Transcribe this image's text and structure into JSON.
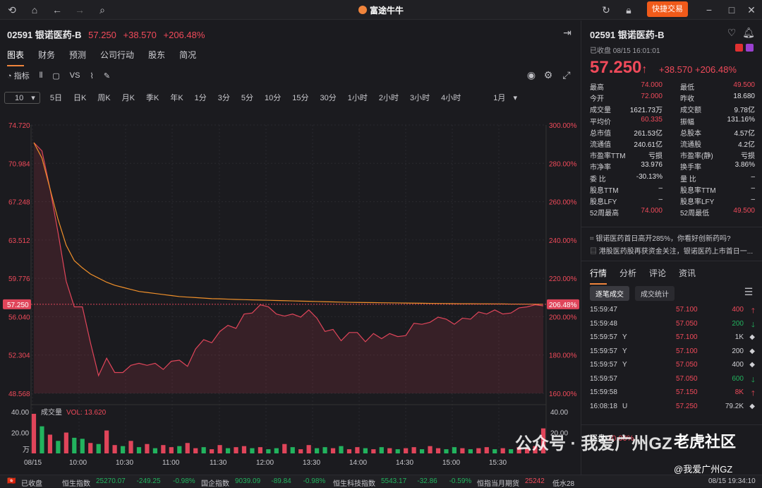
{
  "titlebar": {
    "brand": "富途牛牛",
    "quick_trade": "快捷交易"
  },
  "header": {
    "code": "02591",
    "name": "银诺医药-B",
    "price": "57.250",
    "change": "+38.570",
    "pct": "+206.48%"
  },
  "tabs": [
    "图表",
    "财务",
    "预测",
    "公司行动",
    "股东",
    "简况"
  ],
  "tools": {
    "indicator": "指标",
    "vs": "VS"
  },
  "periods": {
    "selected": "10",
    "items": [
      "5日",
      "日K",
      "周K",
      "月K",
      "季K",
      "年K",
      "1分",
      "3分",
      "5分",
      "10分",
      "15分",
      "30分",
      "1小时",
      "2小时",
      "3小时",
      "4小时",
      "1月"
    ]
  },
  "chart_data": {
    "type": "line",
    "title": "",
    "x_ticks": [
      "08/15",
      "10:00",
      "10:30",
      "11:00",
      "11:30",
      "12:00",
      "13:30",
      "14:00",
      "14:30",
      "15:00",
      "15:30"
    ],
    "y_ticks": [
      "74.720",
      "70.984",
      "67.248",
      "63.512",
      "59.776",
      "56.040",
      "52.304",
      "48.568"
    ],
    "pct_ticks": [
      "300.00%",
      "280.00%",
      "260.00%",
      "240.00%",
      "220.00%",
      "200.00%",
      "180.00%",
      "160.00%"
    ],
    "price_tag": "57.250",
    "pct_tag": "206.48%",
    "ylim": [
      48.568,
      74.72
    ],
    "series": [
      {
        "name": "",
        "color": "#e0455a",
        "values": [
          73.0,
          72.2,
          68.5,
          64.2,
          59.5,
          57.0,
          57.0,
          53.5,
          50.3,
          52.0,
          50.6,
          50.6,
          51.3,
          51.5,
          51.3,
          51.5,
          50.9,
          51.7,
          51.8,
          51.2,
          52.9,
          53.8,
          53.5,
          54.6,
          55.2,
          54.9,
          56.3,
          56.4,
          57.2,
          57.0,
          56.3,
          56.1,
          56.3,
          56.0,
          56.7,
          55.9,
          54.6,
          54.8,
          53.7,
          54.5,
          54.5,
          53.6,
          54.4,
          53.9,
          54.4,
          54.1,
          54.2,
          55.4,
          55.3,
          55.5,
          56.0,
          55.8,
          55.3,
          55.9,
          55.8,
          56.5,
          56.3,
          56.7,
          56.3,
          56.4,
          56.9,
          57.0,
          57.2,
          57.1
        ]
      },
      {
        "name": "",
        "color": "#f0902a",
        "values": [
          73.0,
          71.5,
          68.5,
          65.5,
          63.0,
          61.5,
          60.8,
          60.2,
          59.8,
          59.4,
          59.1,
          58.9,
          58.7,
          58.5,
          58.4,
          58.3,
          58.2,
          58.1,
          58.0,
          57.95,
          57.9,
          57.85,
          57.8,
          57.78,
          57.75,
          57.72,
          57.7,
          57.68,
          57.66,
          57.64,
          57.62,
          57.6,
          57.58,
          57.56,
          57.54,
          57.52,
          57.5,
          57.48,
          57.46,
          57.44,
          57.43,
          57.42,
          57.41,
          57.4,
          57.39,
          57.38,
          57.37,
          57.36,
          57.35,
          57.34,
          57.33,
          57.32,
          57.31,
          57.3,
          57.3,
          57.29,
          57.29,
          57.28,
          57.28,
          57.27,
          57.27,
          57.26,
          57.26,
          57.25
        ]
      }
    ],
    "volume": {
      "label": "成交量",
      "vol": "VOL: 13.620",
      "ticks": [
        "40.00",
        "20.00"
      ],
      "unit": "万",
      "ylim": [
        0,
        40
      ],
      "values": [
        38,
        26,
        18,
        12,
        20,
        15,
        14,
        10,
        9,
        22,
        8,
        7,
        12,
        6,
        9,
        5,
        8,
        6,
        7,
        10,
        5,
        6,
        4,
        8,
        5,
        6,
        7,
        5,
        6,
        4,
        5,
        9,
        6,
        4,
        8,
        5,
        6,
        5,
        7,
        4,
        6,
        5,
        4,
        6,
        5,
        4,
        5,
        6,
        4,
        7,
        5,
        4,
        6,
        5,
        4,
        5,
        6,
        4,
        5,
        4,
        6,
        5,
        7,
        24
      ],
      "up": [
        1,
        0,
        1,
        0,
        1,
        0,
        0,
        1,
        0,
        1,
        1,
        0,
        1,
        0,
        1,
        0,
        1,
        1,
        0,
        1,
        1,
        0,
        1,
        1,
        0,
        1,
        1,
        0,
        1,
        0,
        0,
        1,
        0,
        1,
        1,
        0,
        0,
        1,
        0,
        1,
        1,
        0,
        1,
        0,
        1,
        0,
        1,
        1,
        0,
        1,
        1,
        0,
        0,
        1,
        0,
        1,
        1,
        0,
        1,
        0,
        1,
        1,
        1,
        1
      ]
    }
  },
  "right": {
    "code": "02591",
    "name": "银诺医药-B",
    "sub": "已收盘 08/15 16:01:01",
    "price": "57.250",
    "arrow": "↑",
    "change": "+38.570",
    "pct": "+206.48%",
    "stats": [
      [
        "最高",
        "74.000",
        "最低",
        "49.500"
      ],
      [
        "今开",
        "72.000",
        "昨收",
        "18.680"
      ],
      [
        "成交量",
        "1621.73万",
        "成交额",
        "9.78亿"
      ],
      [
        "平均价",
        "60.335",
        "振幅",
        "131.16%"
      ],
      [
        "总市值",
        "261.53亿",
        "总股本",
        "4.57亿"
      ],
      [
        "流通值",
        "240.61亿",
        "流通股",
        "4.2亿"
      ],
      [
        "市盈率TTM",
        "亏损",
        "市盈率(静)",
        "亏损"
      ],
      [
        "市净率",
        "33.976",
        "换手率",
        "3.86%"
      ],
      [
        "委 比",
        "-30.13%",
        "量 比",
        "–"
      ],
      [
        "股息TTM",
        "–",
        "股息率TTM",
        "–"
      ],
      [
        "股息LFY",
        "–",
        "股息率LFY",
        "–"
      ],
      [
        "52周最高",
        "74.000",
        "52周最低",
        "49.500"
      ]
    ],
    "news": [
      "银诺医药首日高开285%，你看好创新药吗?",
      "港股医药股再获资金关注，银诺医药上市首日一..."
    ],
    "rtabs": [
      "行情",
      "分析",
      "评论",
      "资讯"
    ],
    "subtabs": [
      "逐笔成交",
      "成交统计"
    ],
    "trades": [
      [
        "15:59:47",
        "",
        "57.100",
        "400",
        "up"
      ],
      [
        "15:59:48",
        "",
        "57.050",
        "200",
        "down"
      ],
      [
        "15:59:57",
        "Y",
        "57.100",
        "1K",
        "flat"
      ],
      [
        "15:59:57",
        "Y",
        "57.100",
        "200",
        "flat"
      ],
      [
        "15:59:57",
        "Y",
        "57.050",
        "400",
        "flat"
      ],
      [
        "15:59:57",
        "",
        "57.050",
        "600",
        "down"
      ],
      [
        "15:59:58",
        "",
        "57.150",
        "8K",
        "up"
      ],
      [
        "16:08:18",
        "U",
        "57.250",
        "79.2K",
        "flat"
      ]
    ],
    "buy_label": "买盘",
    "buy_pct": "10.00%"
  },
  "status": {
    "closed": "已收盘",
    "items": [
      [
        "恒生指数",
        "25270.07",
        "-249.25",
        "-0.98%"
      ],
      [
        "国企指数",
        "9039.09",
        "-89.84",
        "-0.98%"
      ],
      [
        "恒生科技指数",
        "5543.17",
        "-32.86",
        "-0.59%"
      ],
      [
        "恒指当月期货",
        "25242",
        "低水28",
        ""
      ]
    ],
    "time": "08/15 19:34:10"
  },
  "watermark": {
    "main": "公众号 · 我爱广州GZ",
    "brand": "老虎社区",
    "handle": "@我爱广州GZ"
  }
}
